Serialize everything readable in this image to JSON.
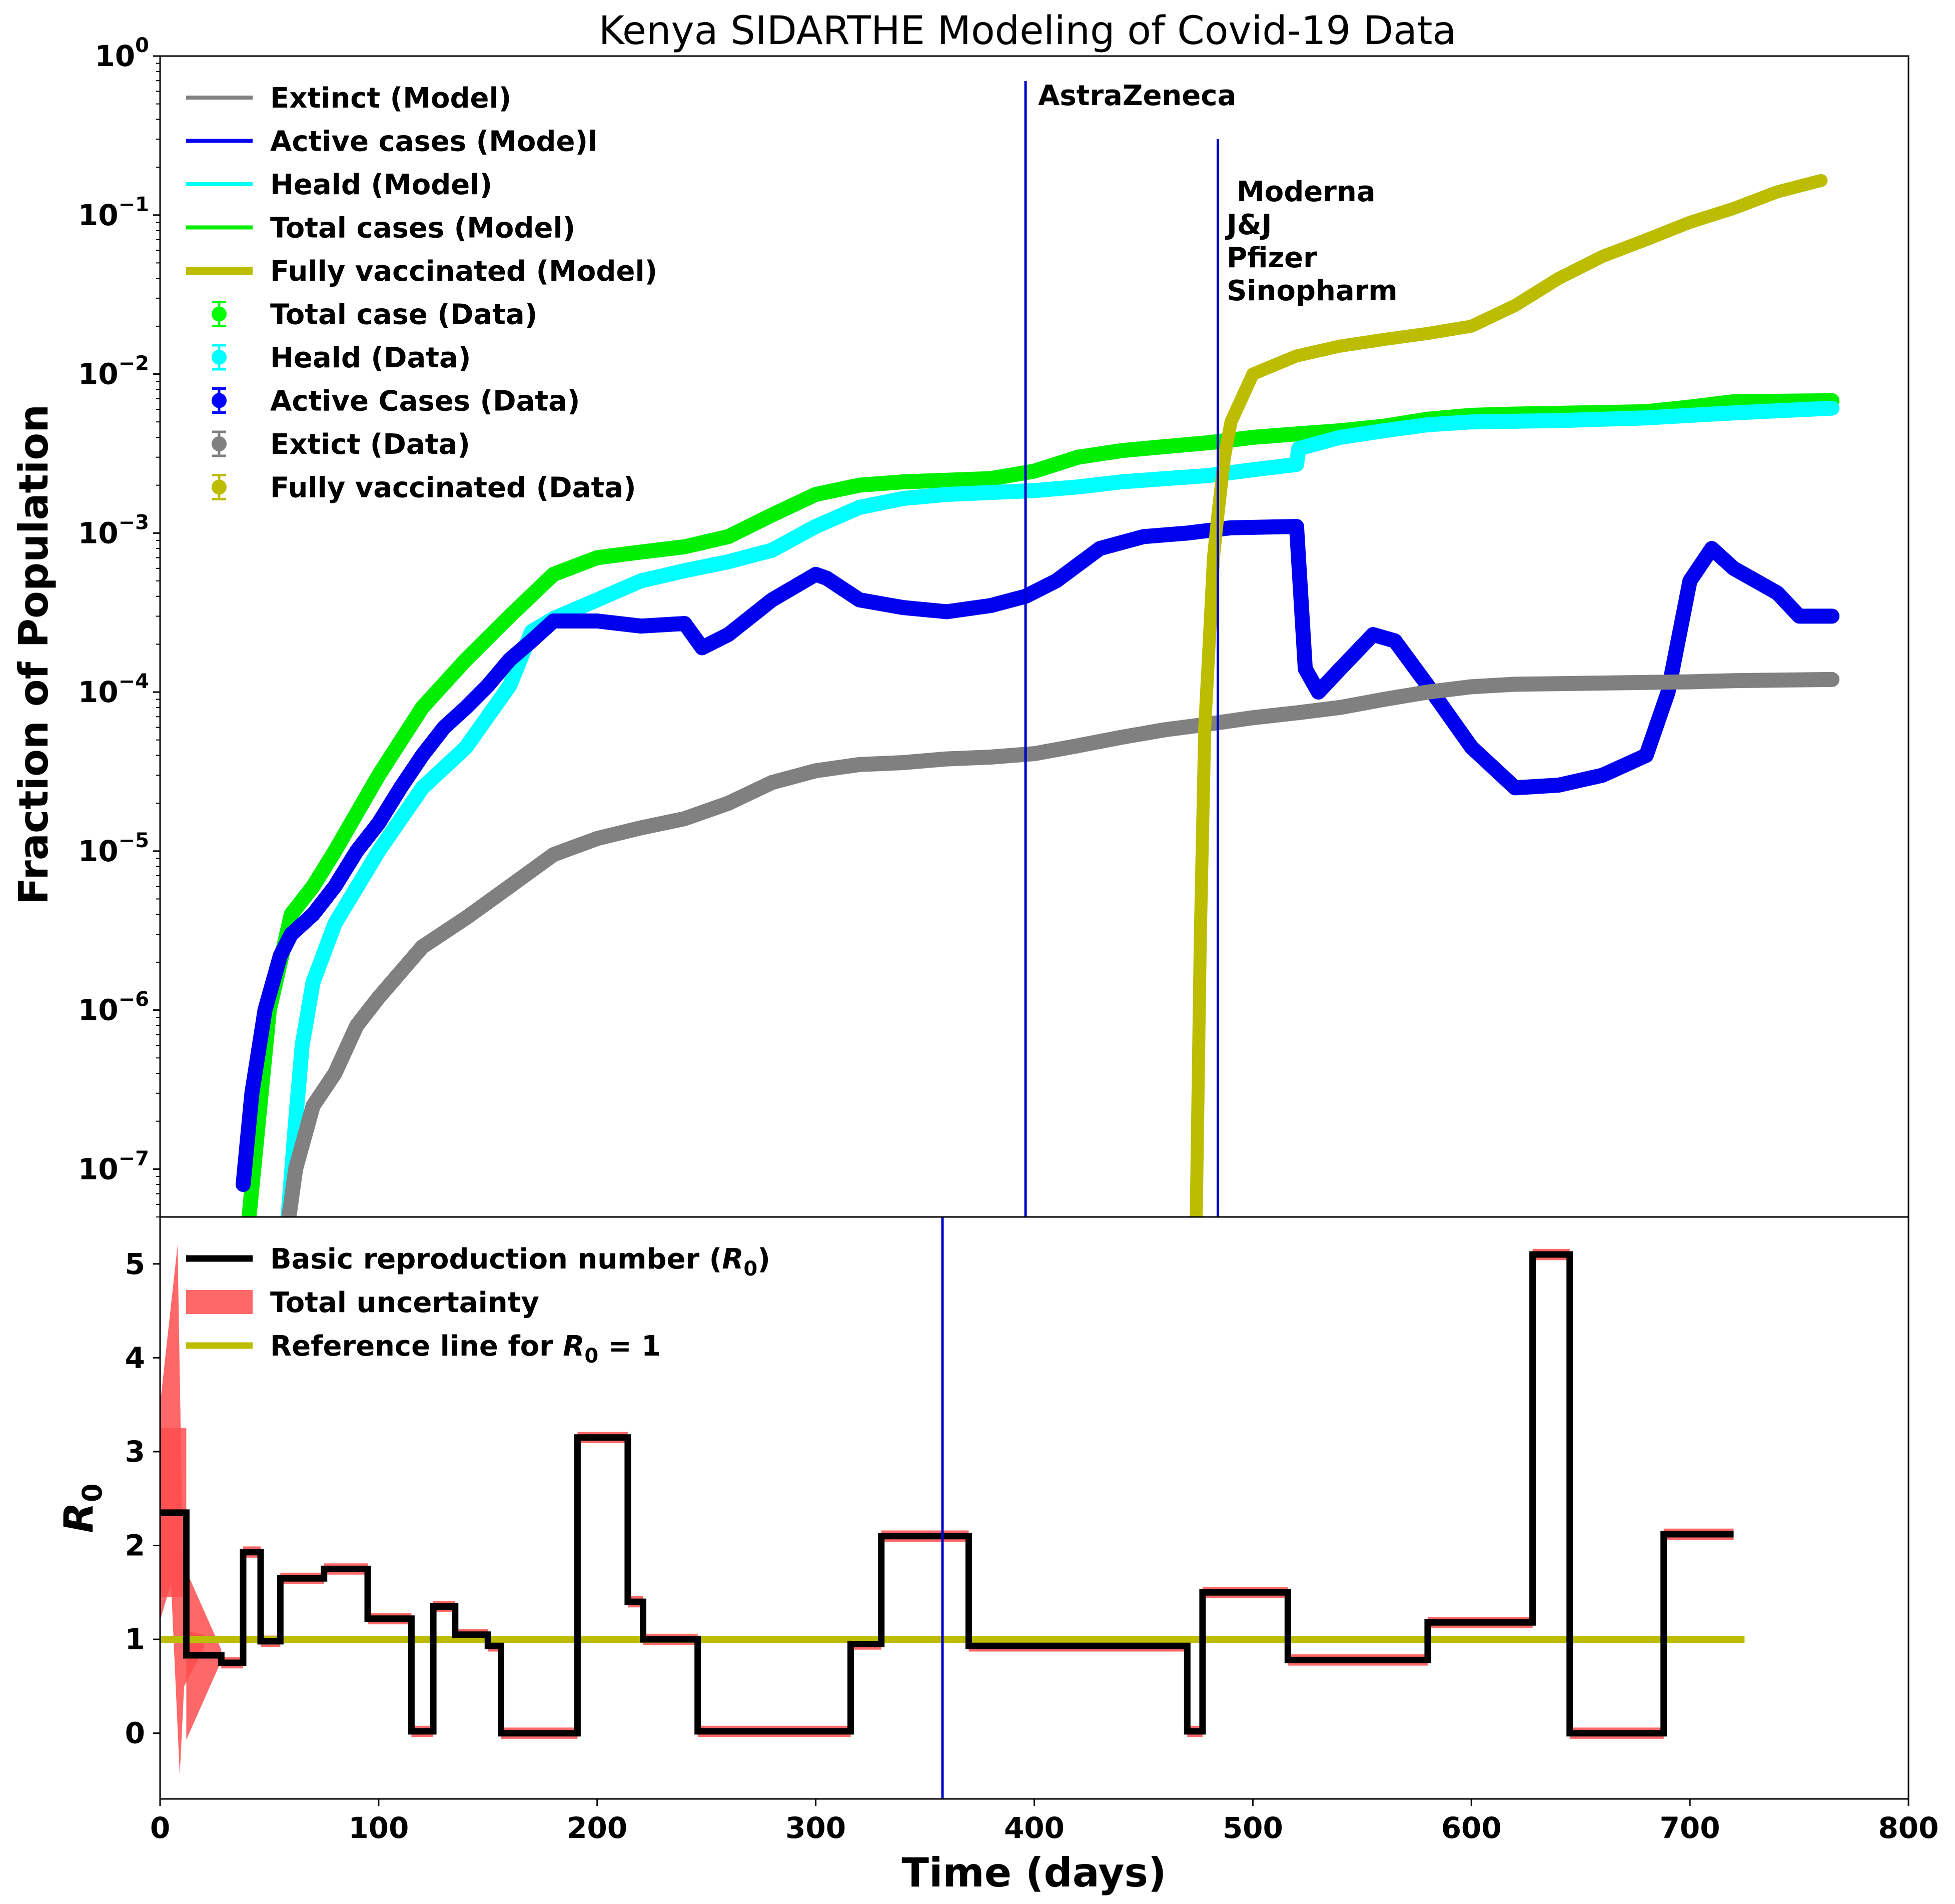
{
  "chart_data": [
    {
      "type": "line",
      "title": "Kenya SIDARTHE Modeling of Covid-19 Data",
      "ylabel": "Fraction of Population",
      "yscale": "log",
      "ylim": [
        5e-08,
        1
      ],
      "xlim": [
        0,
        800
      ],
      "yticks": [
        {
          "value": 1e-07,
          "base": "10",
          "exp": "−7"
        },
        {
          "value": 1e-06,
          "base": "10",
          "exp": "−6"
        },
        {
          "value": 1e-05,
          "base": "10",
          "exp": "−5"
        },
        {
          "value": 0.0001,
          "base": "10",
          "exp": "−4"
        },
        {
          "value": 0.001,
          "base": "10",
          "exp": "−3"
        },
        {
          "value": 0.01,
          "base": "10",
          "exp": "−2"
        },
        {
          "value": 0.1,
          "base": "10",
          "exp": "−1"
        },
        {
          "value": 1,
          "base": "10",
          "exp": "0"
        }
      ],
      "legend_position": "top-left",
      "legend": [
        {
          "label": "Extinct (Model)",
          "color": "#808080",
          "kind": "line"
        },
        {
          "label": "Active cases (Mode)l",
          "color": "#0000ee",
          "kind": "line"
        },
        {
          "label": "Heald (Model)",
          "color": "#00ffff",
          "kind": "line"
        },
        {
          "label": "Total cases (Model)",
          "color": "#00ee00",
          "kind": "line"
        },
        {
          "label": "Fully vaccinated (Model)",
          "color": "#bcbd00",
          "kind": "thick"
        },
        {
          "label": "Total case (Data)",
          "color": "#00ff00",
          "kind": "marker"
        },
        {
          "label": "Heald (Data)",
          "color": "#00ffff",
          "kind": "marker"
        },
        {
          "label": "Active Cases (Data)",
          "color": "#0000ff",
          "kind": "marker"
        },
        {
          "label": "Extict (Data)",
          "color": "#808080",
          "kind": "marker"
        },
        {
          "label": "Fully vaccinated (Data)",
          "color": "#bcbd00",
          "kind": "marker"
        }
      ],
      "annotations": [
        {
          "text": "AstraZeneca",
          "x": 396
        },
        {
          "text": "Moderna",
          "x": 484
        },
        {
          "text": "J&J",
          "x": 484
        },
        {
          "text": "Pfizer",
          "x": 484
        },
        {
          "text": "Sinopharm",
          "x": 484
        }
      ],
      "vlines": [
        396,
        484
      ],
      "series": [
        {
          "color": "#00ee00",
          "points": [
            [
              40,
              4e-08
            ],
            [
              50,
              1e-06
            ],
            [
              55,
              2e-06
            ],
            [
              60,
              4e-06
            ],
            [
              70,
              6e-06
            ],
            [
              80,
              1e-05
            ],
            [
              100,
              3e-05
            ],
            [
              120,
              8e-05
            ],
            [
              140,
              0.00016
            ],
            [
              160,
              0.0003
            ],
            [
              180,
              0.00055
            ],
            [
              200,
              0.0007
            ],
            [
              220,
              0.00076
            ],
            [
              240,
              0.00082
            ],
            [
              260,
              0.00095
            ],
            [
              280,
              0.0013
            ],
            [
              300,
              0.00175
            ],
            [
              320,
              0.002
            ],
            [
              340,
              0.0021
            ],
            [
              360,
              0.00215
            ],
            [
              380,
              0.0022
            ],
            [
              400,
              0.00245
            ],
            [
              420,
              0.003
            ],
            [
              440,
              0.0033
            ],
            [
              460,
              0.0035
            ],
            [
              480,
              0.0037
            ],
            [
              500,
              0.004
            ],
            [
              520,
              0.0042
            ],
            [
              540,
              0.0044
            ],
            [
              560,
              0.0047
            ],
            [
              580,
              0.0052
            ],
            [
              600,
              0.0055
            ],
            [
              620,
              0.0056
            ],
            [
              650,
              0.0057
            ],
            [
              680,
              0.0058
            ],
            [
              700,
              0.0062
            ],
            [
              720,
              0.0067
            ],
            [
              765,
              0.0068
            ]
          ]
        },
        {
          "color": "#00ffff",
          "points": [
            [
              58,
              4e-08
            ],
            [
              62,
              2e-07
            ],
            [
              65,
              6e-07
            ],
            [
              70,
              1.5e-06
            ],
            [
              80,
              3.5e-06
            ],
            [
              100,
              1e-05
            ],
            [
              120,
              2.5e-05
            ],
            [
              140,
              4.5e-05
            ],
            [
              160,
              0.00011
            ],
            [
              170,
              0.00024
            ],
            [
              180,
              0.00029
            ],
            [
              200,
              0.00038
            ],
            [
              220,
              0.0005
            ],
            [
              240,
              0.00058
            ],
            [
              260,
              0.00066
            ],
            [
              280,
              0.00078
            ],
            [
              300,
              0.0011
            ],
            [
              320,
              0.00145
            ],
            [
              340,
              0.00165
            ],
            [
              360,
              0.00175
            ],
            [
              380,
              0.0018
            ],
            [
              400,
              0.00185
            ],
            [
              420,
              0.00195
            ],
            [
              440,
              0.0021
            ],
            [
              460,
              0.0022
            ],
            [
              480,
              0.0023
            ],
            [
              500,
              0.0025
            ],
            [
              520,
              0.0027
            ],
            [
              521,
              0.0034
            ],
            [
              540,
              0.004
            ],
            [
              560,
              0.0044
            ],
            [
              580,
              0.0048
            ],
            [
              600,
              0.005
            ],
            [
              640,
              0.0051
            ],
            [
              680,
              0.0053
            ],
            [
              720,
              0.0057
            ],
            [
              765,
              0.0061
            ]
          ]
        },
        {
          "color": "#0000ee",
          "points": [
            [
              38,
              8e-08
            ],
            [
              42,
              3e-07
            ],
            [
              48,
              1e-06
            ],
            [
              55,
              2.2e-06
            ],
            [
              60,
              3e-06
            ],
            [
              70,
              4e-06
            ],
            [
              80,
              6e-06
            ],
            [
              90,
              1e-05
            ],
            [
              100,
              1.5e-05
            ],
            [
              110,
              2.5e-05
            ],
            [
              120,
              4e-05
            ],
            [
              130,
              6e-05
            ],
            [
              140,
              8e-05
            ],
            [
              150,
              0.00011
            ],
            [
              160,
              0.00016
            ],
            [
              170,
              0.00021
            ],
            [
              180,
              0.00028
            ],
            [
              200,
              0.00028
            ],
            [
              220,
              0.00026
            ],
            [
              240,
              0.00027
            ],
            [
              248,
              0.00019
            ],
            [
              260,
              0.00023
            ],
            [
              280,
              0.00038
            ],
            [
              300,
              0.00055
            ],
            [
              305,
              0.00052
            ],
            [
              320,
              0.00038
            ],
            [
              340,
              0.00034
            ],
            [
              360,
              0.00032
            ],
            [
              380,
              0.00035
            ],
            [
              396,
              0.0004
            ],
            [
              410,
              0.0005
            ],
            [
              430,
              0.0008
            ],
            [
              450,
              0.00095
            ],
            [
              470,
              0.001
            ],
            [
              490,
              0.00108
            ],
            [
              520,
              0.0011
            ],
            [
              524,
              0.00014
            ],
            [
              530,
              0.0001
            ],
            [
              540,
              0.00014
            ],
            [
              555,
              0.00023
            ],
            [
              565,
              0.00021
            ],
            [
              580,
              0.00011
            ],
            [
              600,
              4.5e-05
            ],
            [
              620,
              2.5e-05
            ],
            [
              640,
              2.6e-05
            ],
            [
              660,
              3e-05
            ],
            [
              680,
              4e-05
            ],
            [
              690,
              0.0001
            ],
            [
              700,
              0.0005
            ],
            [
              710,
              0.0008
            ],
            [
              720,
              0.0006
            ],
            [
              740,
              0.00042
            ],
            [
              750,
              0.0003
            ],
            [
              765,
              0.0003
            ]
          ]
        },
        {
          "color": "#808080",
          "points": [
            [
              58,
              4e-08
            ],
            [
              62,
              1e-07
            ],
            [
              70,
              2.5e-07
            ],
            [
              80,
              4e-07
            ],
            [
              90,
              8e-07
            ],
            [
              100,
              1.2e-06
            ],
            [
              120,
              2.5e-06
            ],
            [
              140,
              3.8e-06
            ],
            [
              160,
              6e-06
            ],
            [
              180,
              9.5e-06
            ],
            [
              200,
              1.2e-05
            ],
            [
              220,
              1.4e-05
            ],
            [
              240,
              1.6e-05
            ],
            [
              260,
              2e-05
            ],
            [
              280,
              2.7e-05
            ],
            [
              300,
              3.2e-05
            ],
            [
              320,
              3.5e-05
            ],
            [
              340,
              3.6e-05
            ],
            [
              360,
              3.8e-05
            ],
            [
              380,
              3.9e-05
            ],
            [
              400,
              4.1e-05
            ],
            [
              420,
              4.6e-05
            ],
            [
              440,
              5.2e-05
            ],
            [
              460,
              5.8e-05
            ],
            [
              480,
              6.3e-05
            ],
            [
              500,
              6.9e-05
            ],
            [
              520,
              7.4e-05
            ],
            [
              540,
              8e-05
            ],
            [
              560,
              9e-05
            ],
            [
              580,
              0.0001
            ],
            [
              600,
              0.000108
            ],
            [
              620,
              0.000112
            ],
            [
              640,
              0.000113
            ],
            [
              660,
              0.000114
            ],
            [
              680,
              0.000115
            ],
            [
              700,
              0.000116
            ],
            [
              720,
              0.000118
            ],
            [
              765,
              0.00012
            ]
          ]
        },
        {
          "color": "#bcbd00",
          "points": [
            [
              474,
              4e-08
            ],
            [
              476,
              3e-06
            ],
            [
              478,
              6e-05
            ],
            [
              480,
              0.0002
            ],
            [
              482,
              0.0007
            ],
            [
              484,
              0.0013
            ],
            [
              487,
              0.003
            ],
            [
              490,
              0.005
            ],
            [
              500,
              0.01
            ],
            [
              520,
              0.013
            ],
            [
              540,
              0.015
            ],
            [
              560,
              0.0165
            ],
            [
              580,
              0.018
            ],
            [
              600,
              0.02
            ],
            [
              620,
              0.027
            ],
            [
              640,
              0.04
            ],
            [
              660,
              0.055
            ],
            [
              680,
              0.07
            ],
            [
              700,
              0.09
            ],
            [
              720,
              0.11
            ],
            [
              740,
              0.14
            ],
            [
              760,
              0.165
            ]
          ]
        }
      ]
    },
    {
      "type": "line",
      "xlabel": "Time (days)",
      "ylabel": "R",
      "ylabel_sub": "0",
      "xlim": [
        0,
        800
      ],
      "ylim": [
        -0.7,
        5.5
      ],
      "xticks": [
        0,
        100,
        200,
        300,
        400,
        500,
        600,
        700,
        800
      ],
      "yticks": [
        0,
        1,
        2,
        3,
        4,
        5
      ],
      "vline": 358,
      "legend_position": "top-left",
      "legend": [
        {
          "label": "Basic reproduction number (",
          "sym": "R",
          "sub": "0",
          "tail": ")",
          "color": "#000000",
          "kind": "line"
        },
        {
          "label": "Total uncertainty",
          "color": "#ff4d4d",
          "kind": "patch"
        },
        {
          "label": "Reference line for ",
          "sym": "R",
          "sub": "0",
          "tail": " = 1",
          "color": "#bcbd00",
          "kind": "line"
        }
      ],
      "reference": [
        [
          0,
          1
        ],
        [
          725,
          1
        ]
      ],
      "r0_steps": [
        [
          0,
          2.35
        ],
        [
          12,
          0.83
        ],
        [
          28,
          0.75
        ],
        [
          38,
          1.93
        ],
        [
          46,
          0.98
        ],
        [
          55,
          1.65
        ],
        [
          75,
          1.75
        ],
        [
          95,
          1.22
        ],
        [
          115,
          0.02
        ],
        [
          125,
          1.35
        ],
        [
          135,
          1.05
        ],
        [
          150,
          0.93
        ],
        [
          156,
          0.0
        ],
        [
          191,
          3.15
        ],
        [
          214,
          1.4
        ],
        [
          221,
          1.0
        ],
        [
          246,
          0.02
        ],
        [
          316,
          0.95
        ],
        [
          330,
          2.1
        ],
        [
          370,
          0.93
        ],
        [
          470,
          0.02
        ],
        [
          477,
          1.5
        ],
        [
          516,
          0.78
        ],
        [
          580,
          1.18
        ],
        [
          628,
          5.1
        ],
        [
          645,
          0.0
        ],
        [
          688,
          2.12
        ],
        [
          720,
          2.12
        ]
      ]
    }
  ]
}
